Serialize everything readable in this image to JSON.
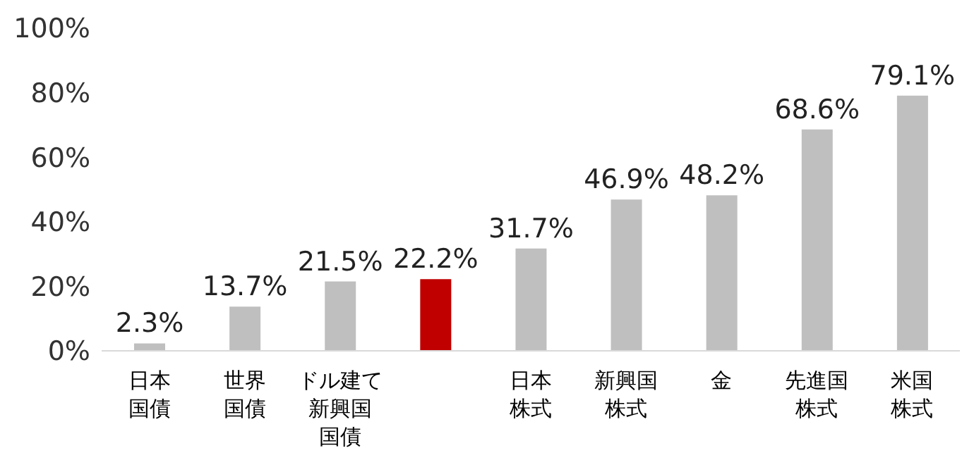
{
  "chart_data": {
    "type": "bar",
    "categories": [
      "日本国債",
      "世界国債",
      "ドル建て新興国国債",
      null,
      "日本株式",
      "新興国株式",
      "金",
      "先進国株式",
      "米国株式"
    ],
    "values": [
      2.3,
      13.7,
      21.5,
      22.2,
      31.7,
      46.9,
      48.2,
      68.6,
      79.1
    ],
    "colors": [
      "#bfbfbf",
      "#bfbfbf",
      "#bfbfbf",
      "#c00000",
      "#bfbfbf",
      "#bfbfbf",
      "#bfbfbf",
      "#bfbfbf",
      "#bfbfbf"
    ],
    "value_labels": [
      "2.3%",
      "13.7%",
      "21.5%",
      "22.2%",
      "31.7%",
      "46.9%",
      "48.2%",
      "68.6%",
      "79.1%"
    ],
    "ylim": [
      0,
      100
    ],
    "yticks": [
      {
        "value": 0,
        "label": "0%"
      },
      {
        "value": 20,
        "label": "20%"
      },
      {
        "value": 40,
        "label": "40%"
      },
      {
        "value": 60,
        "label": "60%"
      },
      {
        "value": 80,
        "label": "80%"
      },
      {
        "value": 100,
        "label": "100%"
      }
    ],
    "grid": false
  }
}
